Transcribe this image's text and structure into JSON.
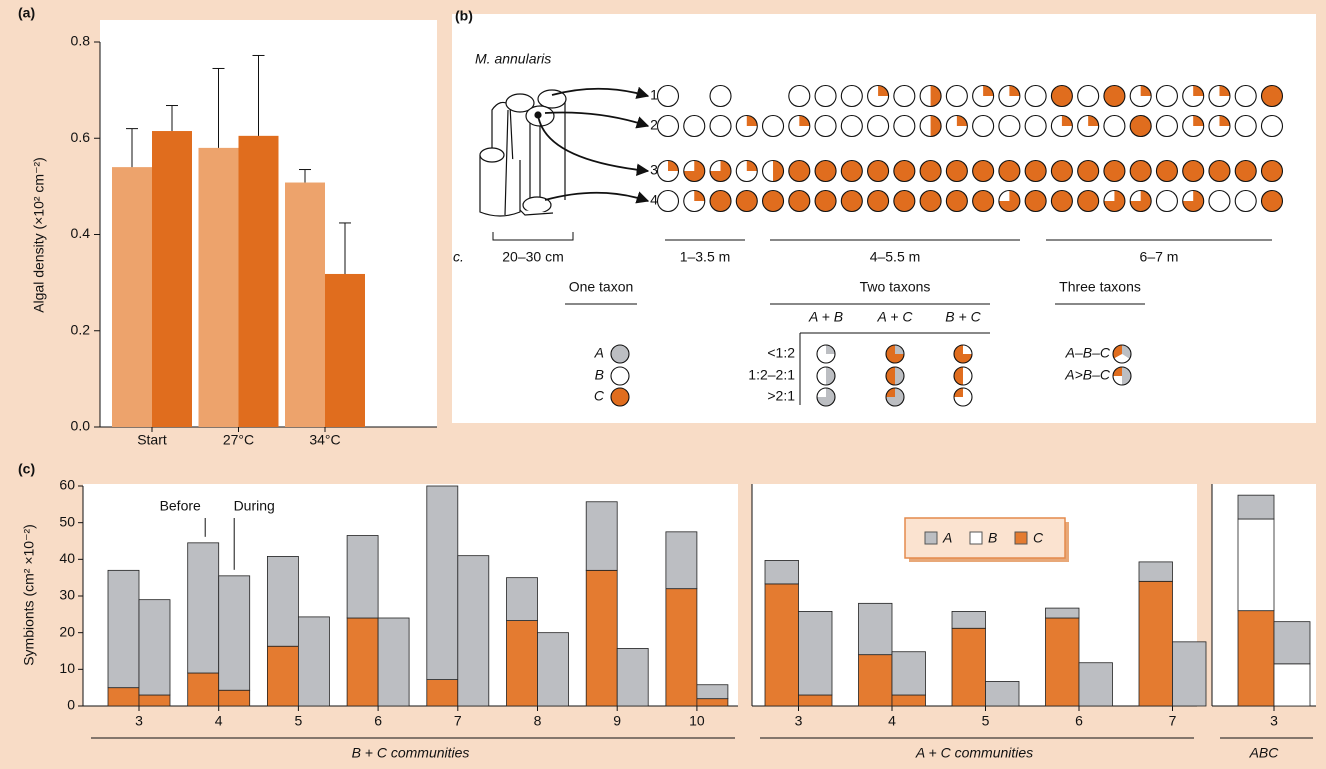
{
  "chart_data": [
    {
      "type": "bar",
      "panel": "(a)",
      "y_label": "Algal density (×10² cm⁻²)",
      "categories": [
        "Start",
        "27°C",
        "34°C"
      ],
      "series": [
        {
          "color": "#eda36c",
          "values": [
            0.54,
            0.58,
            0.508
          ],
          "errors": [
            0.08,
            0.165,
            0.027
          ]
        },
        {
          "color": "#e06d1e",
          "values": [
            0.615,
            0.605,
            0.318
          ],
          "errors": [
            0.053,
            0.167,
            0.106
          ]
        }
      ],
      "ylim": [
        0,
        0.8
      ],
      "yticks": [
        {
          "value": 0,
          "label": "0.0"
        },
        0.2,
        0.4,
        0.6,
        0.8
      ]
    },
    {
      "type": "stacked_bar",
      "panel": "(c)",
      "y_label": "Symbionts (cm² ×10⁻²)",
      "group_label": "B + C communities",
      "bar_labels": [
        "Before",
        "During"
      ],
      "categories": [
        "3",
        "4",
        "5",
        "6",
        "7",
        "8",
        "9",
        "10"
      ],
      "series": [
        {
          "color": "#e47b30",
          "before": [
            5,
            9,
            16.3,
            24,
            7.2,
            23.3,
            37,
            32
          ],
          "during": [
            3,
            4.3,
            0,
            0,
            0,
            0,
            0,
            2
          ]
        },
        {
          "color": "#bcbec2",
          "before": [
            32,
            35.5,
            24.5,
            22.5,
            52.8,
            11.7,
            18.7,
            15.5
          ],
          "during": [
            26,
            31.2,
            24.3,
            24,
            41,
            20,
            15.7,
            3.8
          ]
        }
      ],
      "ylim": [
        0,
        60
      ],
      "yticks": [
        0,
        10,
        20,
        30,
        40,
        50,
        60
      ]
    },
    {
      "type": "stacked_bar",
      "group_label": "A + C communities",
      "categories": [
        "3",
        "4",
        "5",
        "6",
        "7"
      ],
      "series": [
        {
          "color": "#e47b30",
          "before": [
            33.3,
            14,
            21.2,
            24,
            34
          ],
          "during": [
            3,
            3,
            0,
            0,
            0
          ]
        },
        {
          "color": "#bcbec2",
          "before": [
            6.4,
            14,
            4.6,
            2.7,
            5.3
          ],
          "during": [
            22.8,
            11.8,
            6.7,
            11.8,
            17.5
          ]
        }
      ],
      "ylim": [
        0,
        60
      ],
      "legend": [
        {
          "name": "A",
          "color": "#bcbec2"
        },
        {
          "name": "B",
          "color": "#ffffff"
        },
        {
          "name": "C",
          "color": "#e47b30"
        }
      ]
    },
    {
      "type": "stacked_bar",
      "group_label": "ABC",
      "categories": [
        "3"
      ],
      "series": [
        {
          "color": "#e47b30",
          "before": [
            26
          ],
          "during": [
            0
          ]
        },
        {
          "color": "#ffffff",
          "before": [
            25
          ],
          "during": [
            11.5
          ]
        },
        {
          "color": "#bcbec2",
          "before": [
            6.5
          ],
          "during": [
            11.5
          ]
        }
      ],
      "ylim": [
        0,
        60
      ]
    }
  ],
  "diagram": {
    "panel": "(b)",
    "species": "M. annularis",
    "rows": [
      {
        "label": "1",
        "c_share": [
          0,
          null,
          0,
          null,
          null,
          0,
          0,
          0,
          0.25,
          0,
          0.5,
          0,
          0.25,
          0.25,
          0,
          1,
          0,
          1,
          0.25,
          0,
          0.25,
          0.25,
          0,
          1
        ]
      },
      {
        "label": "2",
        "c_share": [
          0,
          0,
          0,
          0.25,
          0,
          0.25,
          0,
          0,
          0,
          0,
          0.5,
          0.25,
          0,
          0,
          0,
          0.25,
          0.25,
          0,
          1,
          0,
          0.25,
          0.25,
          0,
          0
        ]
      },
      {
        "label": "3",
        "c_share": [
          0.25,
          0.75,
          0.75,
          0.25,
          0.5,
          1,
          1,
          1,
          1,
          1,
          1,
          1,
          1,
          1,
          1,
          1,
          1,
          1,
          1,
          1,
          1,
          1,
          1,
          1
        ]
      },
      {
        "label": "4",
        "c_share": [
          0,
          0.25,
          1,
          1,
          1,
          1,
          1,
          1,
          1,
          1,
          1,
          1,
          1,
          0.75,
          1,
          1,
          1,
          0.75,
          0.75,
          0,
          0.75,
          0,
          0,
          1
        ]
      }
    ],
    "scale_prefix": "c.",
    "scales": [
      "20–30 cm",
      "1–3.5 m",
      "4–5.5 m",
      "6–7 m"
    ],
    "legend": {
      "one": {
        "title": "One taxon",
        "items": [
          {
            "label": "A",
            "color": "#bcbec2"
          },
          {
            "label": "B",
            "color": "#ffffff"
          },
          {
            "label": "C",
            "color": "#e06d1e"
          }
        ]
      },
      "two": {
        "title": "Two taxons",
        "pairs": [
          "A + B",
          "A + C",
          "B + C"
        ],
        "ratios": [
          "<1:2",
          "1:2–2:1",
          ">2:1"
        ],
        "first_share": [
          0.25,
          0.5,
          0.75
        ]
      },
      "three": {
        "title": "Three taxons",
        "items": [
          {
            "label": "A–B–C",
            "shares": [
              0.34,
              0.33,
              0.33
            ]
          },
          {
            "label": "A>B–C",
            "shares": [
              0.5,
              0.25,
              0.25
            ]
          }
        ]
      }
    }
  }
}
